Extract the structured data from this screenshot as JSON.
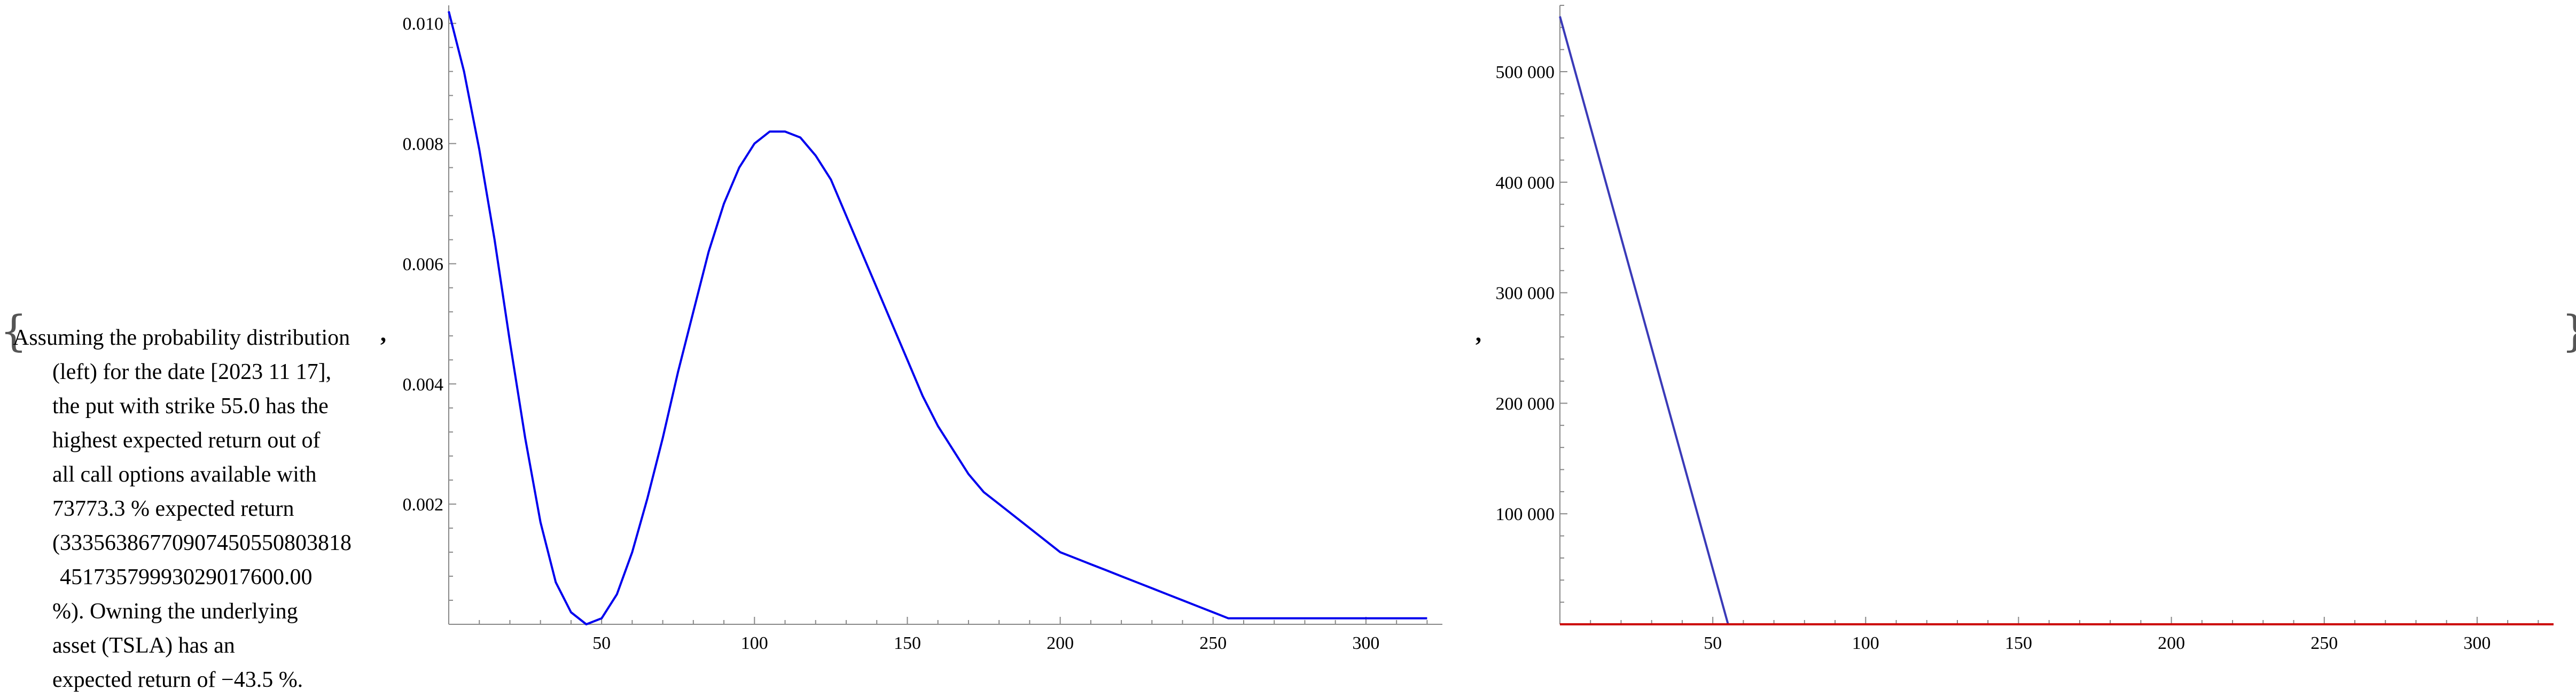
{
  "note": {
    "lines": [
      "Assuming the probability distribution",
      "(left) for the date [2023 11 17],",
      "the put with strike 55.0 has the",
      "highest expected return out of",
      "all call options available with",
      "73773.3 % expected return",
      "(33356386770907450550803818",
      "45173579993029017600.00",
      "%). Owning the underlying",
      "asset (TSLA) has an",
      "expected return of −43.5 %."
    ]
  },
  "separators": {
    "open_brace": "{",
    "close_brace": "}",
    "comma": ","
  },
  "chart_data": [
    {
      "type": "line",
      "title": "",
      "xlabel": "",
      "ylabel": "",
      "xlim": [
        0,
        325
      ],
      "ylim": [
        0,
        0.0103
      ],
      "x_ticks": [
        50,
        100,
        150,
        200,
        250,
        300
      ],
      "x_tick_labels": [
        "50",
        "100",
        "150",
        "200",
        "250",
        "300"
      ],
      "y_ticks": [
        0.002,
        0.004,
        0.006,
        0.008,
        0.01
      ],
      "y_tick_labels": [
        "0.002",
        "0.004",
        "0.006",
        "0.008",
        "0.010"
      ],
      "grid": false,
      "series": [
        {
          "color": "#0000ee",
          "x": [
            0,
            5,
            10,
            15,
            20,
            25,
            30,
            35,
            40,
            45,
            50,
            55,
            60,
            65,
            70,
            75,
            80,
            85,
            90,
            95,
            100,
            105,
            110,
            115,
            120,
            125,
            130,
            135,
            140,
            145,
            150,
            155,
            160,
            165,
            170,
            175,
            180,
            185,
            190,
            195,
            200,
            205,
            210,
            215,
            220,
            225,
            230,
            235,
            240,
            245,
            250,
            255,
            260,
            265,
            270,
            275,
            280,
            285,
            290,
            295,
            300,
            305,
            310,
            315,
            320
          ],
          "y": [
            0.0102,
            0.0092,
            0.0079,
            0.0064,
            0.0047,
            0.0031,
            0.0017,
            0.0007,
            0.0002,
            0.0,
            0.0001,
            0.0005,
            0.0012,
            0.0021,
            0.0031,
            0.0042,
            0.0052,
            0.0062,
            0.007,
            0.0076,
            0.008,
            0.0082,
            0.0082,
            0.0081,
            0.0078,
            0.0074,
            0.0068,
            0.0062,
            0.0056,
            0.005,
            0.0044,
            0.0038,
            0.0033,
            0.0029,
            0.0025,
            0.0022,
            0.002,
            0.0018,
            0.0016,
            0.0014,
            0.0012,
            0.0011,
            0.001,
            0.0009,
            0.0008,
            0.0007,
            0.0006,
            0.0005,
            0.0004,
            0.0003,
            0.0002,
            0.0001,
            0.0001,
            0.0001,
            0.0001,
            0.0001,
            0.0001,
            0.0001,
            0.0001,
            0.0001,
            0.0001,
            0.0001,
            0.0001,
            0.0001,
            0.0001
          ]
        }
      ]
    },
    {
      "type": "line",
      "title": "",
      "xlabel": "",
      "ylabel": "",
      "xlim": [
        0,
        325
      ],
      "ylim": [
        0,
        560000
      ],
      "x_ticks": [
        50,
        100,
        150,
        200,
        250,
        300
      ],
      "x_tick_labels": [
        "50",
        "100",
        "150",
        "200",
        "250",
        "300"
      ],
      "y_ticks": [
        100000,
        200000,
        300000,
        400000,
        500000
      ],
      "y_tick_labels": [
        "100 000",
        "200 000",
        "300 000",
        "400 000",
        "500 000"
      ],
      "grid": false,
      "series": [
        {
          "color": "#3a3ab8",
          "x": [
            0,
            55,
            325
          ],
          "y": [
            550000,
            0,
            0
          ]
        },
        {
          "color": "#cc0000",
          "x": [
            0,
            325
          ],
          "y": [
            0,
            0
          ]
        }
      ]
    }
  ]
}
